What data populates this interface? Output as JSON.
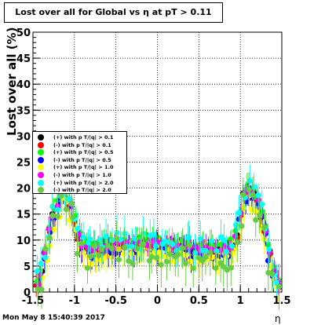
{
  "chart_data": {
    "type": "scatter",
    "title": "Lost over all for Global vs   η at pT > 0.11",
    "xlabel": "η",
    "ylabel": "Lost over all (%)",
    "xlim": [
      -1.5,
      1.5
    ],
    "ylim": [
      0,
      50
    ],
    "xticks": [
      "-1.5",
      "-1",
      "-0.5",
      "0",
      "0.5",
      "1",
      "1.5"
    ],
    "yticks": [
      "0",
      "5",
      "10",
      "15",
      "20",
      "25",
      "30",
      "35",
      "40",
      "45",
      "50"
    ],
    "grid": true,
    "legend_position": "left",
    "footer": "Mon May  8 15:40:39 2017",
    "series": [
      {
        "name": "(+) with p T/|q| > 0.1",
        "color": "#000000"
      },
      {
        "name": "(-) with p T/|q| > 0.1",
        "color": "#ff0000"
      },
      {
        "name": "(+) with p T/|q| > 0.5",
        "color": "#00ff00"
      },
      {
        "name": "(-) with p T/|q| > 0.5",
        "color": "#0000ff"
      },
      {
        "name": "(+) with p T/|q| > 1.0",
        "color": "#ffff00"
      },
      {
        "name": "(-) with p T/|q| > 1.0",
        "color": "#ff00ff"
      },
      {
        "name": "(+) with p T/|q| > 2.0",
        "color": "#00ffff"
      },
      {
        "name": "(-) with p T/|q| > 2.0",
        "color": "#66cc44"
      }
    ],
    "series_values": {
      "eta": [
        -1.45,
        -1.4,
        -1.35,
        -1.3,
        -1.25,
        -1.2,
        -1.15,
        -1.1,
        -1.05,
        -1.0,
        -0.95,
        -0.9,
        -0.85,
        -0.8,
        -0.75,
        -0.7,
        -0.65,
        -0.6,
        -0.55,
        -0.5,
        -0.45,
        -0.4,
        -0.35,
        -0.3,
        -0.25,
        -0.2,
        -0.15,
        -0.1,
        -0.05,
        0.0,
        0.05,
        0.1,
        0.15,
        0.2,
        0.25,
        0.3,
        0.35,
        0.4,
        0.45,
        0.5,
        0.55,
        0.6,
        0.65,
        0.7,
        0.75,
        0.8,
        0.85,
        0.9,
        0.95,
        1.0,
        1.05,
        1.1,
        1.15,
        1.2,
        1.25,
        1.3,
        1.35,
        1.4,
        1.45
      ],
      "base": [
        2,
        4,
        8,
        12,
        15,
        17,
        19,
        20,
        17,
        14,
        11,
        9,
        8.5,
        8.5,
        8.5,
        8.5,
        9,
        9,
        9,
        9.5,
        9.5,
        9.5,
        9.5,
        9.5,
        9.5,
        9.5,
        9.5,
        9.5,
        9.5,
        9.5,
        9.5,
        9,
        9,
        9,
        9,
        9,
        8.5,
        8.5,
        8.5,
        8.5,
        8.5,
        8.5,
        8.5,
        8.5,
        8.5,
        8.5,
        8.5,
        9,
        11,
        15,
        19,
        20,
        19,
        18,
        15,
        12,
        8,
        4,
        2
      ],
      "offsets": [
        0,
        -0.5,
        0.6,
        -1.2,
        -2.0,
        -0.2,
        0.3,
        -1.8
      ],
      "jitter": [
        0,
        0.3,
        0.6,
        1.0,
        1.2,
        0.5,
        1.8,
        2.6
      ]
    }
  }
}
